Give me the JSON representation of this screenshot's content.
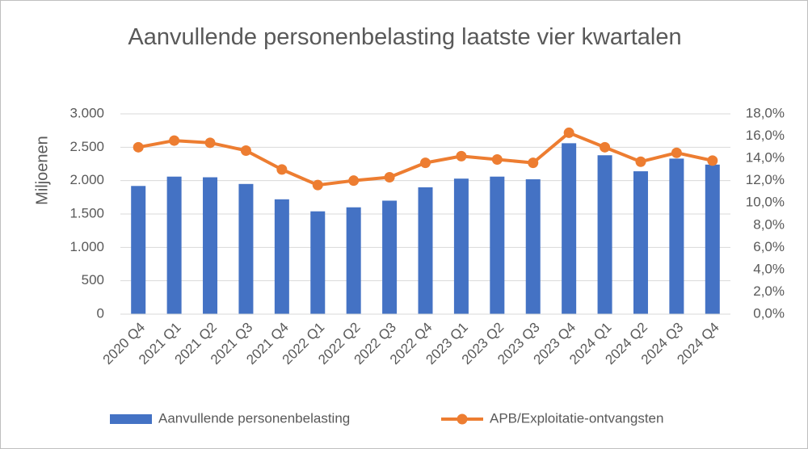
{
  "chart_data": {
    "type": "bar_line",
    "title": "Aanvullende personenbelasting laatste vier kwartalen",
    "y_label": "Miljoenen",
    "categories": [
      "2020 Q4",
      "2021 Q1",
      "2021 Q2",
      "2021 Q3",
      "2021 Q4",
      "2022 Q1",
      "2022 Q2",
      "2022 Q3",
      "2022 Q4",
      "2023 Q1",
      "2023 Q2",
      "2023 Q3",
      "2023 Q4",
      "2024 Q1",
      "2024 Q2",
      "2024 Q3",
      "2024 Q4"
    ],
    "series": [
      {
        "name": "Aanvullende personenbelasting",
        "type": "bar",
        "color": "#4472c4",
        "values": [
          1920,
          2060,
          2050,
          1950,
          1720,
          1540,
          1600,
          1700,
          1900,
          2030,
          2060,
          2020,
          2560,
          2380,
          2140,
          2330,
          2240
        ]
      },
      {
        "name": "APB/Exploitatie-ontvangsten",
        "type": "line",
        "axis": "y2",
        "color": "#ed7d31",
        "values": [
          15.0,
          15.6,
          15.4,
          14.7,
          13.0,
          11.6,
          12.0,
          12.3,
          13.6,
          14.2,
          13.9,
          13.6,
          16.3,
          15.0,
          13.7,
          14.5,
          13.8
        ]
      }
    ],
    "ylim": [
      0,
      3000
    ],
    "yticks": [
      0,
      500,
      {
        "value": 1000,
        "label": "1.000"
      },
      {
        "value": 1500,
        "label": "1.500"
      },
      {
        "value": 2000,
        "label": "2.000"
      },
      {
        "value": 2500,
        "label": "2.500"
      },
      {
        "value": 3000,
        "label": "3.000"
      }
    ],
    "y2lim": [
      0,
      18
    ],
    "y2ticks": [
      {
        "value": 0,
        "label": "0,0%"
      },
      {
        "value": 2,
        "label": "2,0%"
      },
      {
        "value": 4,
        "label": "4,0%"
      },
      {
        "value": 6,
        "label": "6,0%"
      },
      {
        "value": 8,
        "label": "8,0%"
      },
      {
        "value": 10,
        "label": "10,0%"
      },
      {
        "value": 12,
        "label": "12,0%"
      },
      {
        "value": 14,
        "label": "14,0%"
      },
      {
        "value": 16,
        "label": "16,0%"
      },
      {
        "value": 18,
        "label": "18,0%"
      }
    ],
    "grid": true,
    "legend": "bottom"
  }
}
